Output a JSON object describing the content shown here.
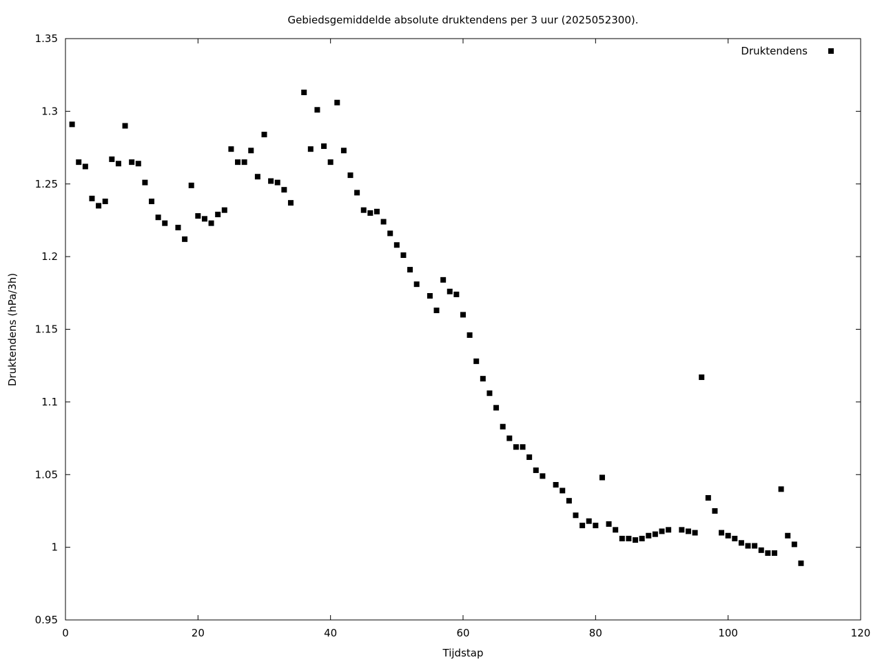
{
  "chart_data": {
    "type": "scatter",
    "title": "Gebiedsgemiddelde absolute druktendens per 3 uur (2025052300).",
    "xlabel": "Tijdstap",
    "ylabel": "Druktendens (hPa/3h)",
    "xlim": [
      0,
      120
    ],
    "ylim": [
      0.95,
      1.35
    ],
    "x_ticks": [
      0,
      20,
      40,
      60,
      80,
      100,
      120
    ],
    "x_tick_labels": [
      "0",
      "20",
      "40",
      "60",
      "80",
      "100",
      "120"
    ],
    "y_ticks": [
      0.95,
      1.0,
      1.05,
      1.1,
      1.15,
      1.2,
      1.25,
      1.3,
      1.35
    ],
    "y_tick_labels": [
      "0.95",
      "1",
      "1.05",
      "1.1",
      "1.15",
      "1.2",
      "1.25",
      "1.3",
      "1.35"
    ],
    "grid": false,
    "legend_position": "top-right",
    "marker": "square",
    "color": "#000000",
    "series": [
      {
        "name": "Druktendens",
        "x": [
          1,
          2,
          3,
          4,
          5,
          6,
          7,
          8,
          9,
          10,
          11,
          12,
          13,
          14,
          15,
          17,
          18,
          19,
          20,
          21,
          22,
          23,
          24,
          25,
          26,
          27,
          28,
          29,
          30,
          31,
          32,
          33,
          34,
          36,
          37,
          38,
          39,
          40,
          41,
          42,
          43,
          44,
          45,
          46,
          47,
          48,
          49,
          50,
          51,
          52,
          53,
          55,
          56,
          57,
          58,
          59,
          60,
          61,
          62,
          63,
          64,
          65,
          66,
          67,
          68,
          69,
          70,
          71,
          72,
          74,
          75,
          76,
          77,
          78,
          79,
          80,
          81,
          82,
          83,
          84,
          85,
          86,
          87,
          88,
          89,
          90,
          91,
          93,
          94,
          95,
          96,
          97,
          98,
          99,
          100,
          101,
          102,
          103,
          104,
          105,
          106,
          107,
          108,
          109,
          110,
          111
        ],
        "y": [
          1.291,
          1.265,
          1.262,
          1.24,
          1.235,
          1.238,
          1.267,
          1.264,
          1.29,
          1.265,
          1.264,
          1.251,
          1.238,
          1.227,
          1.223,
          1.22,
          1.212,
          1.249,
          1.228,
          1.226,
          1.223,
          1.229,
          1.232,
          1.274,
          1.265,
          1.265,
          1.273,
          1.255,
          1.284,
          1.252,
          1.251,
          1.246,
          1.237,
          1.313,
          1.274,
          1.301,
          1.276,
          1.265,
          1.306,
          1.273,
          1.256,
          1.244,
          1.232,
          1.23,
          1.231,
          1.224,
          1.216,
          1.208,
          1.201,
          1.191,
          1.181,
          1.173,
          1.163,
          1.184,
          1.176,
          1.174,
          1.16,
          1.146,
          1.128,
          1.116,
          1.106,
          1.096,
          1.083,
          1.075,
          1.069,
          1.069,
          1.062,
          1.053,
          1.049,
          1.043,
          1.039,
          1.032,
          1.022,
          1.015,
          1.018,
          1.015,
          1.048,
          1.016,
          1.012,
          1.006,
          1.006,
          1.005,
          1.006,
          1.008,
          1.009,
          1.011,
          1.012,
          1.012,
          1.011,
          1.01,
          1.117,
          1.034,
          1.025,
          1.01,
          1.008,
          1.006,
          1.003,
          1.001,
          1.001,
          0.998,
          0.996,
          0.996,
          1.04,
          1.008,
          1.002,
          0.989
        ]
      }
    ]
  }
}
